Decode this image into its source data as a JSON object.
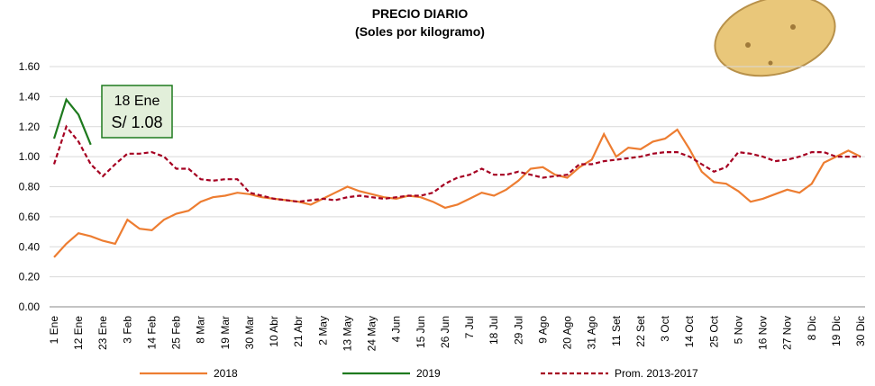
{
  "chart_data": {
    "type": "line",
    "title": "PRECIO DIARIO",
    "subtitle": "(Soles por kilogramo)",
    "annotation": {
      "date": "18 Ene",
      "value": "S/ 1.08"
    },
    "categories": [
      "1 Ene",
      null,
      "12 Ene",
      null,
      "23 Ene",
      null,
      "3 Feb",
      null,
      "14 Feb",
      null,
      "25 Feb",
      null,
      "8 Mar",
      null,
      "19 Mar",
      null,
      "30 Mar",
      null,
      "10 Abr",
      null,
      "21 Abr",
      null,
      "2 May",
      null,
      "13 May",
      null,
      "24 May",
      null,
      "4 Jun",
      null,
      "15 Jun",
      null,
      "26 Jun",
      null,
      "7 Jul",
      null,
      "18 Jul",
      null,
      "29 Jul",
      null,
      "9 Ago",
      null,
      "20 Ago",
      null,
      "31 Ago",
      null,
      "11 Set",
      null,
      "22 Set",
      null,
      "3 Oct",
      null,
      "14 Oct",
      null,
      "25 Oct",
      null,
      "5 Nov",
      null,
      "16 Nov",
      null,
      "27 Nov",
      null,
      "8 Dic",
      null,
      "19 Dic",
      null,
      "30 Dic"
    ],
    "series": [
      {
        "name": "2018",
        "color": "#ed7d31",
        "dash": false,
        "values": [
          0.33,
          0.42,
          0.49,
          0.47,
          0.44,
          0.42,
          0.58,
          0.52,
          0.51,
          0.58,
          0.62,
          0.64,
          0.7,
          0.73,
          0.74,
          0.76,
          0.75,
          0.73,
          0.72,
          0.71,
          0.7,
          0.68,
          0.72,
          0.76,
          0.8,
          0.77,
          0.75,
          0.73,
          0.72,
          0.74,
          0.73,
          0.7,
          0.66,
          0.68,
          0.72,
          0.76,
          0.74,
          0.78,
          0.84,
          0.92,
          0.93,
          0.88,
          0.86,
          0.93,
          0.98,
          1.15,
          1.0,
          1.06,
          1.05,
          1.1,
          1.12,
          1.18,
          1.05,
          0.9,
          0.83,
          0.82,
          0.77,
          0.7,
          0.72,
          0.75,
          0.78,
          0.76,
          0.82,
          0.96,
          1.0,
          1.04,
          1.0
        ]
      },
      {
        "name": "2019",
        "color": "#1e7a1e",
        "dash": false,
        "values": [
          1.12,
          1.38,
          1.28,
          1.08,
          null,
          null,
          null,
          null,
          null,
          null,
          null,
          null,
          null,
          null,
          null,
          null,
          null,
          null,
          null,
          null,
          null,
          null,
          null,
          null,
          null,
          null,
          null,
          null,
          null,
          null,
          null,
          null,
          null,
          null,
          null,
          null,
          null,
          null,
          null,
          null,
          null,
          null,
          null,
          null,
          null,
          null,
          null,
          null,
          null,
          null,
          null,
          null,
          null,
          null,
          null,
          null,
          null,
          null,
          null,
          null,
          null,
          null,
          null,
          null,
          null,
          null,
          null
        ]
      },
      {
        "name": "Prom. 2013-2017",
        "color": "#a50021",
        "dash": true,
        "values": [
          0.95,
          1.2,
          1.1,
          0.95,
          0.87,
          0.95,
          1.02,
          1.02,
          1.03,
          1.0,
          0.92,
          0.92,
          0.85,
          0.84,
          0.85,
          0.85,
          0.76,
          0.74,
          0.72,
          0.71,
          0.7,
          0.71,
          0.72,
          0.71,
          0.73,
          0.74,
          0.73,
          0.72,
          0.73,
          0.74,
          0.74,
          0.76,
          0.82,
          0.86,
          0.88,
          0.92,
          0.88,
          0.88,
          0.9,
          0.88,
          0.86,
          0.87,
          0.88,
          0.95,
          0.95,
          0.97,
          0.98,
          0.99,
          1.0,
          1.02,
          1.03,
          1.03,
          1.0,
          0.95,
          0.9,
          0.93,
          1.03,
          1.02,
          1.0,
          0.97,
          0.98,
          1.0,
          1.03,
          1.03,
          1.0,
          1.0,
          1.0
        ]
      }
    ],
    "ylim": [
      0,
      1.6
    ],
    "yticks": [
      {
        "value": 0,
        "label": "0.00"
      },
      {
        "value": 0.2,
        "label": "0.20"
      },
      {
        "value": 0.4,
        "label": "0.40"
      },
      {
        "value": 0.6,
        "label": "0.60"
      },
      {
        "value": 0.8,
        "label": "0.80"
      },
      {
        "value": 1,
        "label": "1.00"
      },
      {
        "value": 1.2,
        "label": "1.20"
      },
      {
        "value": 1.4,
        "label": "1.40"
      },
      {
        "value": 1.6,
        "label": "1.60"
      }
    ],
    "grid": true,
    "legend": "bottom"
  }
}
